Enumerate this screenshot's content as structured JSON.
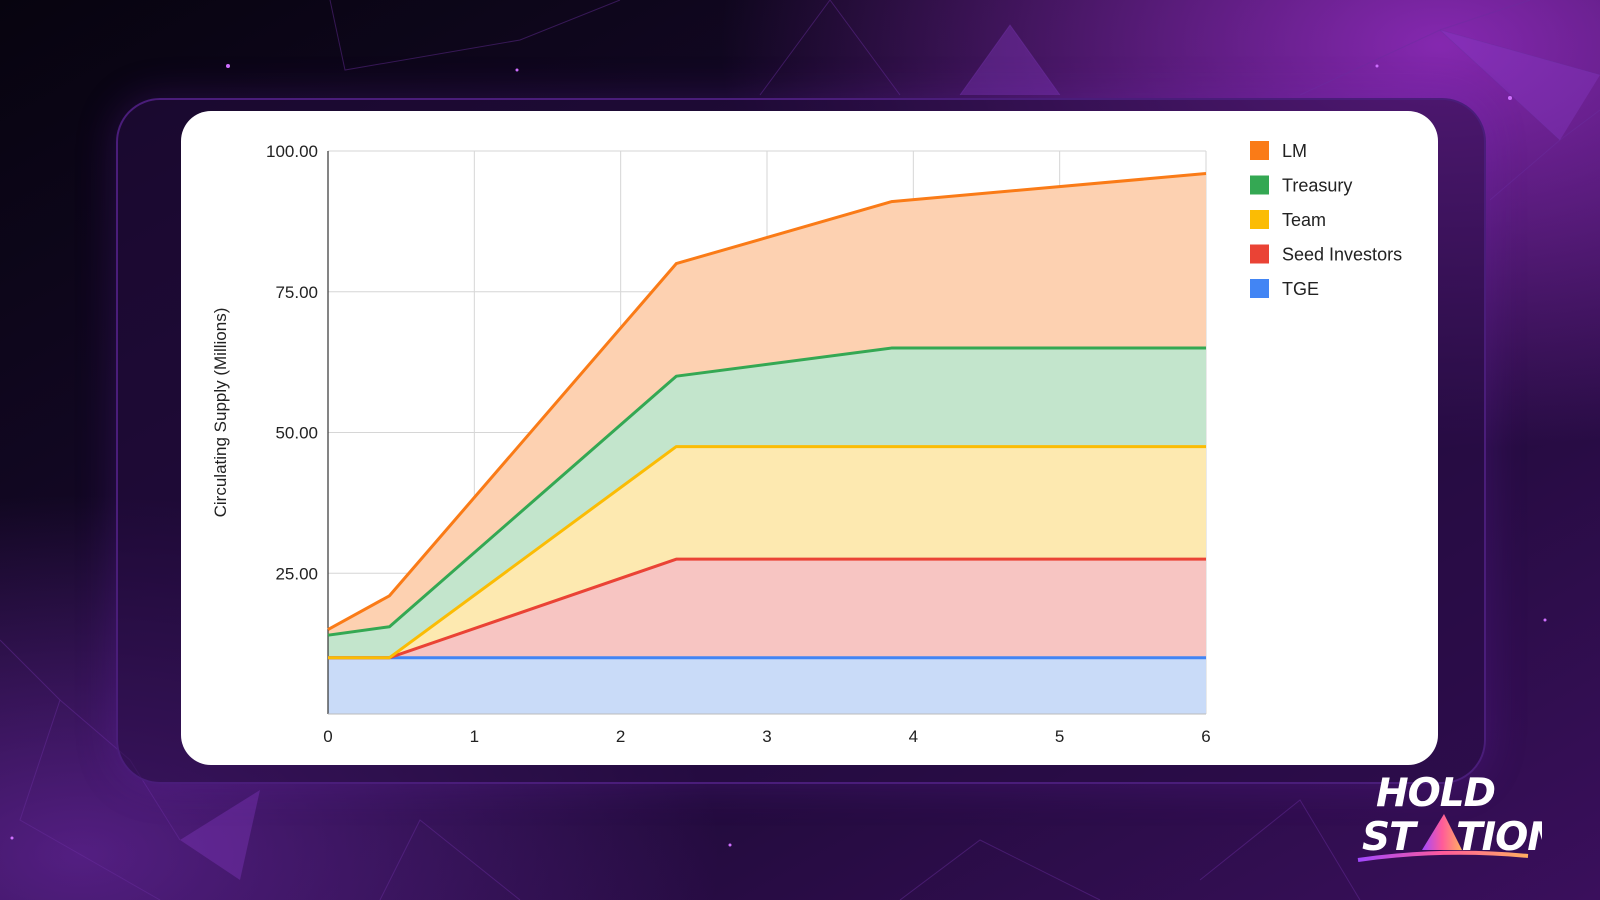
{
  "chart_data": {
    "type": "area",
    "stacked": true,
    "title": "",
    "xlabel": "",
    "ylabel": "Circulating Supply (Millions)",
    "xlim": [
      0,
      6
    ],
    "ylim": [
      0,
      100
    ],
    "x_ticks": [
      "0",
      "1",
      "2",
      "3",
      "4",
      "5",
      "6"
    ],
    "y_ticks": [
      "25.00",
      "50.00",
      "75.00",
      "100.00"
    ],
    "grid": true,
    "legend_position": "right",
    "x": [
      0,
      0.42,
      2.38,
      3.85,
      6
    ],
    "series": [
      {
        "name": "TGE",
        "color": "#4285f4",
        "fill": "#c9dbf8",
        "values": [
          10,
          10,
          10,
          10,
          10
        ]
      },
      {
        "name": "Seed Investors",
        "color": "#ea4335",
        "fill": "#f7c5c2",
        "values": [
          0,
          0,
          17.5,
          17.5,
          17.5
        ]
      },
      {
        "name": "Team",
        "color": "#fbbc04",
        "fill": "#fde9b0",
        "values": [
          0,
          0,
          20,
          20,
          20
        ]
      },
      {
        "name": "Treasury",
        "color": "#34a853",
        "fill": "#c3e5cc",
        "values": [
          4,
          5.5,
          12.5,
          17.5,
          17.5
        ]
      },
      {
        "name": "LM",
        "color": "#fa7b17",
        "fill": "#fdd1b1",
        "values": [
          1,
          5.5,
          20,
          26,
          31
        ]
      }
    ],
    "legend_order": [
      "LM",
      "Treasury",
      "Team",
      "Seed Investors",
      "TGE"
    ]
  },
  "logo": {
    "line1": "HOLD",
    "line2_left": "ST",
    "line2_right": "TION"
  }
}
